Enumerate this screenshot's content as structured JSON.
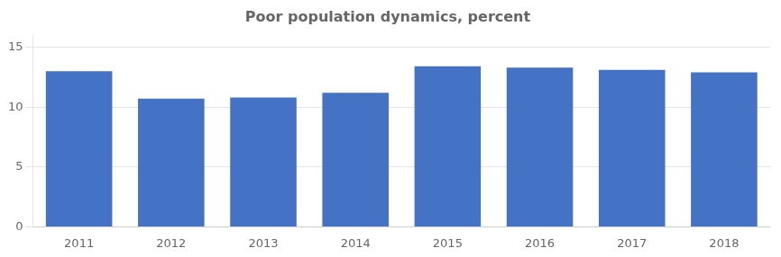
{
  "chart_data": {
    "type": "bar",
    "title": "Poor population dynamics, percent",
    "categories": [
      "2011",
      "2012",
      "2013",
      "2014",
      "2015",
      "2016",
      "2017",
      "2018"
    ],
    "values": [
      13.0,
      10.7,
      10.8,
      11.2,
      13.4,
      13.3,
      13.1,
      12.9
    ],
    "color": "#4472C4",
    "ylim": [
      0,
      16
    ],
    "yticks": [
      0,
      5,
      10,
      15
    ],
    "grid": true
  }
}
